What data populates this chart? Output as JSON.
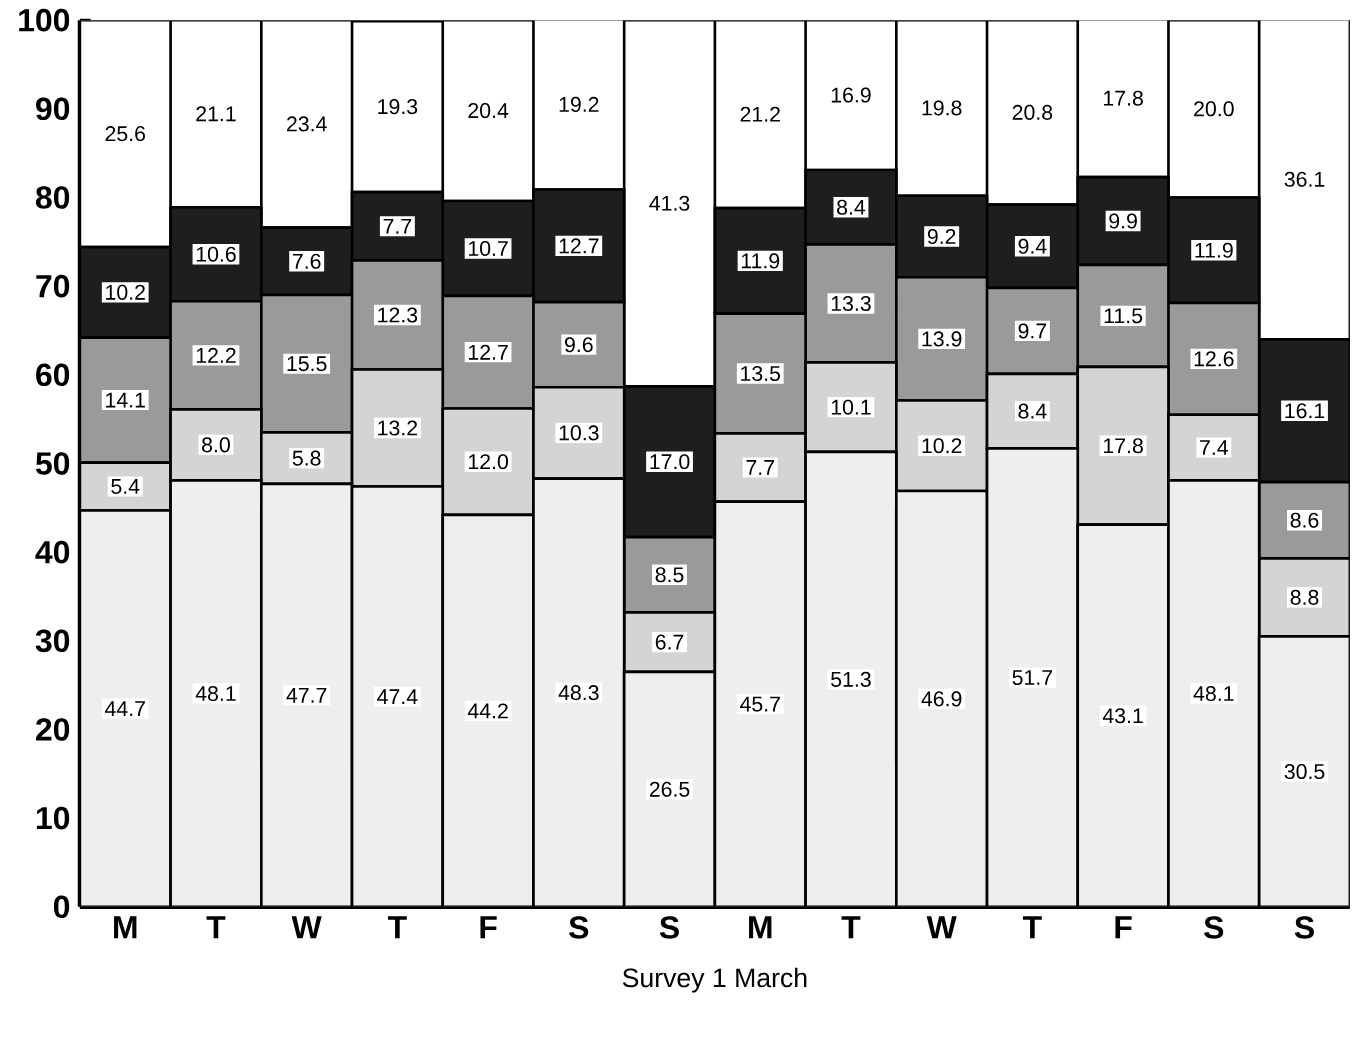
{
  "chart_data": {
    "type": "bar",
    "stacked": true,
    "xlabel": "Survey 1  March",
    "categories": [
      "M",
      "T",
      "W",
      "T",
      "F",
      "S",
      "S",
      "M",
      "T",
      "W",
      "T",
      "F",
      "S",
      "S"
    ],
    "series": [
      {
        "color": "#eeeeee",
        "values": [
          44.7,
          48.1,
          47.7,
          47.4,
          44.2,
          48.3,
          26.5,
          45.7,
          51.3,
          46.9,
          51.7,
          43.1,
          48.1,
          30.5
        ],
        "value_labels": [
          "44.7",
          "48.1",
          "47.7",
          "47.4",
          "44.2",
          "48.3",
          "26.5",
          "45.7",
          "51.3",
          "46.9",
          "51.7",
          "43.1",
          "48.1",
          "30.5"
        ]
      },
      {
        "color": "#d4d4d4",
        "values": [
          5.4,
          8.0,
          5.8,
          13.2,
          12.0,
          10.3,
          6.7,
          7.7,
          10.1,
          10.2,
          8.4,
          17.8,
          7.4,
          8.8
        ],
        "value_labels": [
          "5.4",
          "8.0",
          "5.8",
          "13.2",
          "12.0",
          "10.3",
          "6.7",
          "7.7",
          "10.1",
          "10.2",
          "8.4",
          "17.8",
          "7.4",
          "8.8"
        ]
      },
      {
        "color": "#9a9a9a",
        "values": [
          14.1,
          12.2,
          15.5,
          12.3,
          12.7,
          9.6,
          8.5,
          13.5,
          13.3,
          13.9,
          9.7,
          11.5,
          12.6,
          8.6
        ],
        "value_labels": [
          "14.1",
          "12.2",
          "15.5",
          "12.3",
          "12.7",
          "9.6",
          "8.5",
          "13.5",
          "13.3",
          "13.9",
          "9.7",
          "11.5",
          "12.6",
          "8.6"
        ]
      },
      {
        "color": "#1e1e1e",
        "values": [
          10.2,
          10.6,
          7.6,
          7.7,
          10.7,
          12.7,
          17.0,
          11.9,
          8.4,
          9.2,
          9.4,
          9.9,
          11.9,
          16.1
        ],
        "value_labels": [
          "10.2",
          "10.6",
          "7.6",
          "7.7",
          "10.7",
          "12.7",
          "17.0",
          "11.9",
          "8.4",
          "9.2",
          "9.4",
          "9.9",
          "11.9",
          "16.1"
        ]
      },
      {
        "color": "#ffffff",
        "values": [
          25.6,
          21.1,
          23.4,
          19.3,
          20.4,
          19.2,
          41.3,
          21.2,
          16.9,
          19.8,
          20.8,
          17.8,
          20.0,
          36.1
        ],
        "value_labels": [
          "25.6",
          "21.1",
          "23.4",
          "19.3",
          "20.4",
          "19.2",
          "41.3",
          "21.2",
          "16.9",
          "19.8",
          "20.8",
          "17.8",
          "20.0",
          "36.1"
        ]
      }
    ],
    "ylim": [
      0,
      100
    ],
    "yticks": [
      0,
      10,
      20,
      30,
      40,
      50,
      60,
      70,
      80,
      90,
      100
    ]
  }
}
